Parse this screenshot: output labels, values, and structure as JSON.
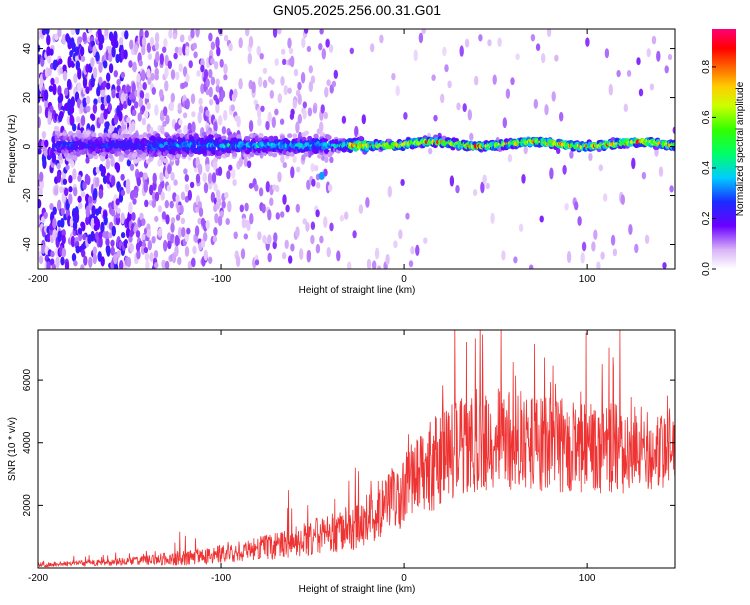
{
  "title": "GN05.2025.256.00.31.G01",
  "chart_data": [
    {
      "type": "heatmap",
      "xlabel": "Height of straight line (km)",
      "ylabel": "Frequency (Hz)",
      "xlim": [
        -200,
        148
      ],
      "ylim": [
        -50,
        48
      ],
      "xticks": [
        -200,
        -100,
        0,
        100
      ],
      "yticks": [
        -40,
        -20,
        0,
        20,
        40
      ],
      "colorbar": {
        "label": "Normalized spectral amplitude",
        "range": [
          0,
          0.95
        ],
        "ticks": [
          0.0,
          0.2,
          0.4,
          0.6,
          0.8
        ]
      },
      "description": "Spectral amplitude around 0 Hz; broad noisy spread below -100 km, narrowing to a strong line near 0-2 Hz above -30 km"
    },
    {
      "type": "line",
      "xlabel": "Height of straight line (km)",
      "ylabel": "SNR (10 * v/v)",
      "xlim": [
        -200,
        148
      ],
      "ylim": [
        0,
        7600
      ],
      "xticks": [
        -200,
        -100,
        0,
        100
      ],
      "yticks": [
        2000,
        4000,
        6000
      ],
      "color": "#ee3333",
      "envelope": {
        "x": [
          -200,
          -180,
          -160,
          -140,
          -120,
          -100,
          -80,
          -60,
          -40,
          -25,
          -15,
          -5,
          5,
          15,
          25,
          40,
          60,
          80,
          100,
          120,
          148
        ],
        "mean": [
          100,
          140,
          180,
          250,
          330,
          450,
          600,
          850,
          1100,
          1350,
          1800,
          2200,
          2700,
          3300,
          3900,
          4100,
          4100,
          3950,
          3850,
          3800,
          3750
        ],
        "amp": [
          90,
          100,
          130,
          180,
          300,
          350,
          450,
          600,
          750,
          900,
          1100,
          1300,
          1500,
          1800,
          2000,
          2000,
          1900,
          1800,
          1700,
          1700,
          1600
        ]
      }
    }
  ]
}
